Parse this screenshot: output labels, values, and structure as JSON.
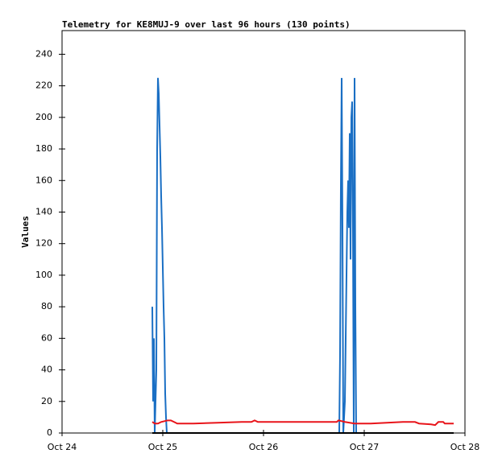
{
  "chart_data": {
    "type": "line",
    "title": "Telemetry for KE8MUJ-9 over last 96 hours (130 points)",
    "y_label": "Values",
    "xlim": [
      0,
      4
    ],
    "xticks": [
      {
        "value": 0,
        "label": "Oct 24"
      },
      {
        "value": 1,
        "label": "Oct 25"
      },
      {
        "value": 2,
        "label": "Oct 26"
      },
      {
        "value": 3,
        "label": "Oct 27"
      },
      {
        "value": 4,
        "label": "Oct 28"
      }
    ],
    "ylim": [
      0,
      255
    ],
    "yticks": [
      0,
      20,
      40,
      60,
      80,
      100,
      120,
      140,
      160,
      180,
      200,
      220,
      240
    ],
    "grid": false,
    "series": [
      {
        "color": "#1a6fc4",
        "x": [
          0.896,
          0.904,
          0.912,
          0.92,
          0.936,
          0.944,
          0.952,
          0.96,
          0.968,
          0.976,
          0.984,
          0.992,
          1.0,
          1.008,
          1.016,
          1.024,
          1.032,
          1.04,
          2.752,
          2.76,
          2.768,
          2.776,
          2.784,
          2.792,
          2.808,
          2.816,
          2.824,
          2.832,
          2.84,
          2.848,
          2.856,
          2.864,
          2.872,
          2.88,
          2.888,
          2.896,
          2.904,
          2.912,
          2.92,
          3.888
        ],
        "values": [
          80,
          20,
          60,
          0,
          40,
          180,
          225,
          215,
          195,
          175,
          150,
          130,
          105,
          80,
          60,
          25,
          10,
          0,
          0,
          50,
          155,
          225,
          130,
          0,
          20,
          60,
          100,
          140,
          160,
          130,
          190,
          110,
          200,
          210,
          130,
          0,
          225,
          80,
          0,
          0
        ]
      },
      {
        "color": "#e8141a",
        "x": [
          0.896,
          0.92,
          0.952,
          0.984,
          1.048,
          1.08,
          1.112,
          1.144,
          1.304,
          1.544,
          1.784,
          1.88,
          1.912,
          1.944,
          2.584,
          2.728,
          2.744,
          2.808,
          2.904,
          3.064,
          3.224,
          3.384,
          3.504,
          3.544,
          3.664,
          3.704,
          3.736,
          3.784,
          3.8,
          3.888
        ],
        "values": [
          7,
          6,
          6,
          7,
          8,
          8,
          7,
          6,
          6,
          6.5,
          7,
          7,
          8,
          7,
          7,
          7,
          8,
          7,
          6,
          6,
          6.5,
          7,
          7,
          6,
          5.5,
          5,
          7,
          7,
          6,
          6
        ]
      },
      {
        "color": "#000000",
        "x": [
          0.896,
          3.888
        ],
        "values": [
          0,
          0
        ]
      }
    ]
  }
}
